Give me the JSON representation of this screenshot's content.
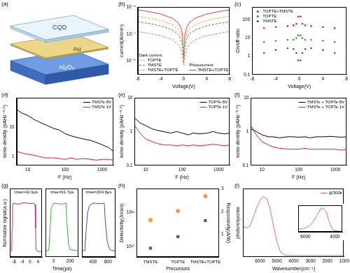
{
  "diagram": {
    "panel": "(a)",
    "layers": [
      "CQD",
      "Au",
      "Al₂O₃"
    ]
  },
  "chart_data": [
    {
      "panel": "(b)",
      "type": "line",
      "x_label": "Voltage(V)",
      "y_label": "current(A/mm²)",
      "log": "y",
      "grid": false,
      "legend": "lower center",
      "x": [
        -8,
        -6,
        -4,
        -2,
        -1,
        -0.5,
        -0.2,
        0,
        0.2,
        0.5,
        1,
        2,
        4,
        6,
        8
      ],
      "xlim": [
        -8,
        8
      ],
      "xticks": [
        -8,
        -4,
        0,
        4,
        8
      ],
      "ylim": [
        1e-10,
        1e-05
      ],
      "yticks": [
        {
          "value": 1e-09,
          "label": "10⁻⁹"
        },
        {
          "value": 1e-07,
          "label": "10⁻⁷"
        },
        {
          "value": 1e-05,
          "label": "10⁻⁵"
        }
      ],
      "series": [
        {
          "name": "TOPTE",
          "group": "Dark current",
          "color": "#f0a035",
          "line_style": "dashed",
          "values": [
            2e-06,
            1.5e-06,
            1e-06,
            5e-07,
            2.4e-07,
            1e-07,
            3e-08,
            1e-09,
            3e-08,
            1e-07,
            2.4e-07,
            5e-07,
            1e-06,
            1.5e-06,
            2e-06
          ]
        },
        {
          "name": "TMSTE",
          "group": "Dark current",
          "color": "#3a8a45",
          "line_style": "dashed",
          "values": [
            8e-07,
            6e-07,
            4e-07,
            2e-07,
            1e-07,
            4e-08,
            1.2e-08,
            8e-10,
            1.2e-08,
            4e-08,
            1e-07,
            2e-07,
            4e-07,
            6e-07,
            8e-07
          ]
        },
        {
          "name": "TMSTE+TOPTE",
          "group": "Dark current",
          "color": "#e86f8a",
          "line_style": "dashed",
          "values": [
            1.5e-07,
            1.1e-07,
            7.5e-08,
            3.8e-08,
            1.8e-08,
            7.5e-09,
            2.5e-09,
            5e-10,
            2.5e-09,
            7.5e-09,
            1.8e-08,
            3.8e-08,
            7.5e-08,
            1.1e-07,
            1.5e-07
          ]
        },
        {
          "name": "TMSTE+TOPTE",
          "group": "Photocurrent",
          "color": "#e0405a",
          "line_style": "solid",
          "values": [
            6e-06,
            4.5e-06,
            3e-06,
            1.5e-06,
            7e-07,
            3e-07,
            9e-08,
            2e-09,
            9e-08,
            3e-07,
            7e-07,
            1.5e-06,
            3e-06,
            4.5e-06,
            6e-06
          ]
        }
      ]
    },
    {
      "panel": "(c)",
      "type": "scatter",
      "marker": "circle",
      "x_label": "Voltage(V)",
      "y_label": "On/off ratio",
      "log": "y",
      "grid": false,
      "legend": "upper left",
      "x": [
        -8,
        -6,
        -4,
        -2,
        -1,
        -0.5,
        -0.2,
        0.2,
        0.5,
        1,
        2,
        4,
        6,
        8
      ],
      "xlim": [
        -8,
        8
      ],
      "xticks": [
        -8,
        -4,
        0,
        4,
        8
      ],
      "ylim": [
        0.1,
        500
      ],
      "yticks": [
        0.1,
        1,
        10,
        100
      ],
      "series": [
        {
          "name": "TOPTE+TMSTE",
          "color": "#e02030",
          "values": [
            30,
            35,
            40,
            45,
            50,
            60,
            150,
            150,
            60,
            50,
            45,
            40,
            35,
            30
          ]
        },
        {
          "name": "TOPTE",
          "color": "#3a9a3a",
          "values": [
            5,
            6,
            7,
            8,
            8,
            10,
            14,
            14,
            10,
            8,
            8,
            7,
            6,
            5
          ]
        },
        {
          "name": "TMSTE",
          "color": "#3050c0",
          "values": [
            1,
            1.5,
            2.2,
            2.8,
            2.5,
            1.5,
            0.6,
            0.6,
            1.5,
            2.5,
            2.8,
            2.2,
            1.5,
            1
          ]
        }
      ]
    },
    {
      "panel": "(d)",
      "type": "line",
      "x_label": "F (Hz)",
      "y_label": "noise density (pAHz⁻⁰·⁵)",
      "log": true,
      "grid": false,
      "legend": "upper right",
      "x": [
        5,
        7,
        10,
        15,
        20,
        30,
        50,
        70,
        100,
        150,
        200,
        300,
        500,
        700,
        1000,
        1500,
        2000
      ],
      "xlim": [
        5,
        2000
      ],
      "xticks": [
        10,
        100,
        1000
      ],
      "ylim": [
        0.5,
        100
      ],
      "yticks": [
        1,
        10
      ],
      "series": [
        {
          "name": "TMSTe 8V",
          "color": "#000000",
          "values": [
            40,
            30,
            25,
            18,
            15,
            12,
            9,
            8,
            6,
            5,
            4.5,
            4,
            3.5,
            3,
            2.5,
            2,
            1.5
          ]
        },
        {
          "name": "TMSTe 1V",
          "color": "#e02020",
          "values": [
            1.5,
            1.3,
            1.2,
            1.1,
            1,
            0.9,
            0.9,
            0.85,
            0.8,
            0.9,
            0.8,
            0.85,
            0.8,
            0.75,
            0.8,
            0.8,
            0.75
          ]
        }
      ]
    },
    {
      "panel": "(e)",
      "type": "line",
      "x_label": "F (Hz)",
      "y_label": "noise density (pAHz⁻⁰·⁵)",
      "log": true,
      "grid": false,
      "legend": "upper right",
      "x": [
        5,
        7,
        10,
        15,
        20,
        30,
        50,
        70,
        100,
        150,
        200,
        300,
        500,
        700,
        1000,
        1500,
        2000
      ],
      "xlim": [
        5,
        2000
      ],
      "xticks": [
        10,
        100,
        1000
      ],
      "ylim": [
        0.1,
        10
      ],
      "yticks": [
        0.1,
        1,
        10
      ],
      "series": [
        {
          "name": "TOPTe 8V",
          "color": "#000000",
          "values": [
            2.5,
            1.8,
            1.5,
            1.2,
            1.1,
            1,
            0.9,
            1,
            0.9,
            0.8,
            0.9,
            0.85,
            0.9,
            1,
            0.9,
            0.85,
            0.9
          ]
        },
        {
          "name": "TOPTe 1V",
          "color": "#e02020",
          "values": [
            1.5,
            0.9,
            0.6,
            0.5,
            0.45,
            0.4,
            0.4,
            0.38,
            0.4,
            0.38,
            0.4,
            0.38,
            0.4,
            0.42,
            0.4,
            0.38,
            0.4
          ]
        }
      ]
    },
    {
      "panel": "(f)",
      "type": "line",
      "x_label": "F (Hz)",
      "y_label": "noise density (pAHz⁻⁰·⁵)",
      "log": true,
      "grid": false,
      "legend": "upper right",
      "x": [
        5,
        7,
        10,
        15,
        20,
        30,
        50,
        70,
        100,
        150,
        200,
        300,
        500,
        700,
        1000,
        1500,
        2000
      ],
      "xlim": [
        5,
        2000
      ],
      "xticks": [
        10,
        100,
        1000
      ],
      "ylim": [
        0.1,
        10
      ],
      "yticks": [
        0.1,
        1,
        10
      ],
      "series": [
        {
          "name": "TMSTe + TOPTe 8V",
          "color": "#000000",
          "values": [
            1.2,
            1,
            0.8,
            0.7,
            0.7,
            0.65,
            0.7,
            0.7,
            0.68,
            0.7,
            0.65,
            0.7,
            0.7,
            0.72,
            0.7,
            0.68,
            0.7
          ]
        },
        {
          "name": "TMSTe + TOPTe 1V",
          "color": "#e02020",
          "values": [
            1.5,
            0.8,
            0.5,
            0.4,
            0.35,
            0.32,
            0.3,
            0.3,
            0.3,
            0.32,
            0.3,
            0.3,
            0.3,
            0.3,
            0.3,
            0.28,
            0.3
          ]
        }
      ]
    },
    {
      "panel": "(g)",
      "type": "line",
      "x_label": "Time(μs)",
      "y_label": "Normalize signal(a.u.)",
      "grid": false,
      "tick_labels": "x",
      "ylim": [
        -0.1,
        1.3
      ],
      "subplots": [
        {
          "annotation": "τrise=42.9μs",
          "color": "#d02090",
          "xlim": [
            -10,
            6
          ],
          "xticks": [
            -8,
            -4,
            0,
            4
          ],
          "x": [
            -10,
            -9.2,
            -9,
            -8.8,
            -8.5,
            -6,
            -3,
            0,
            2,
            2.5,
            2.8,
            3,
            3.5,
            6
          ],
          "values": [
            0.02,
            0.03,
            0.5,
            0.95,
            1,
            0.98,
            1.01,
            0.99,
            1,
            0.97,
            0.5,
            0.05,
            0.02,
            0.01
          ]
        },
        {
          "annotation": "τrise=91.7μs",
          "color": "#30b030",
          "xlim": [
            -100,
            300
          ],
          "xticks": [
            0,
            200
          ],
          "x": [
            -100,
            -60,
            -50,
            -30,
            0,
            100,
            150,
            160,
            180,
            200,
            300
          ],
          "values": [
            0.02,
            0.03,
            0.3,
            0.9,
            1,
            0.98,
            1,
            0.6,
            0.15,
            0.05,
            0.02
          ]
        },
        {
          "annotation": "τrise=204.6μs",
          "color": "#4a4ab8",
          "xlim": [
            100,
            1000
          ],
          "xticks": [
            400,
            800
          ],
          "x": [
            100,
            180,
            200,
            250,
            300,
            400,
            600,
            700,
            720,
            780,
            850,
            1000
          ],
          "values": [
            0.03,
            0.03,
            0.3,
            0.8,
            0.95,
            1,
            0.99,
            1,
            0.7,
            0.2,
            0.05,
            0.02
          ]
        }
      ]
    },
    {
      "panel": "(h)",
      "type": "scatter",
      "x_label": "Precursors",
      "y_label": "Detectivity(Jones)",
      "y2_label": "Responsivity(A/W)",
      "log": "y",
      "grid": false,
      "categories": [
        "TMSTE",
        "TOPTE",
        "TMSTE+TOPTE"
      ],
      "ylim": [
        5000000000.0,
        500000000000.0
      ],
      "yticks": [
        {
          "value": 10000000000.0,
          "label": "10¹⁰"
        },
        {
          "value": 100000000000.0,
          "label": "10¹¹"
        }
      ],
      "y2lim": [
        0,
        3
      ],
      "y2ticks": [
        1,
        2,
        3
      ],
      "series": [
        {
          "color": "#f5a040",
          "marker": "circle",
          "values": [
            60000000000.0,
            110000000000.0,
            300000000000.0
          ]
        },
        {
          "color": "#3a7a30",
          "marker": "square",
          "axis": "y2",
          "values": [
            0.4,
            0.9,
            1.6
          ]
        }
      ]
    },
    {
      "panel": "(i)",
      "type": "line",
      "x_label": "Wavenumber(cm⁻¹)",
      "y_label": "photoresponse",
      "grid": false,
      "tick_labels": "x",
      "legend": "upper right",
      "x": [
        7000,
        6800,
        6600,
        6400,
        6200,
        6000,
        5800,
        5600,
        5400,
        5200,
        5000,
        4800,
        4600,
        4400,
        4000,
        3500,
        3000,
        2500,
        2000,
        1500,
        1000
      ],
      "xlim": [
        7000,
        1000
      ],
      "xticks": [
        6000,
        5000,
        4000,
        3000,
        2000,
        1000
      ],
      "ylim": [
        0,
        1
      ],
      "series": [
        {
          "name": "@300k",
          "color": "#e07080",
          "values": [
            0.45,
            0.42,
            0.45,
            0.58,
            0.72,
            0.83,
            0.88,
            0.85,
            0.7,
            0.45,
            0.22,
            0.08,
            0.03,
            0.02,
            0.02,
            0.02,
            0.02,
            0.02,
            0.02,
            0.02,
            0.02
          ]
        }
      ],
      "inset": {
        "type": "line",
        "grid": false,
        "tick_labels": "x",
        "x": [
          6500,
          6200,
          6000,
          5800,
          5600,
          5400,
          5200,
          5000,
          4800,
          4600,
          4400,
          4200,
          4000,
          3800,
          3500
        ],
        "xlim": [
          6500,
          3500
        ],
        "xticks": [
          6000,
          4000
        ],
        "ylim": [
          0,
          1
        ],
        "series": [
          {
            "color": "#e07080",
            "values": [
              0.1,
              0.12,
              0.15,
              0.2,
              0.3,
              0.45,
              0.65,
              0.85,
              0.9,
              0.75,
              0.4,
              0.12,
              0.05,
              0.03,
              0.02
            ]
          }
        ]
      }
    }
  ]
}
